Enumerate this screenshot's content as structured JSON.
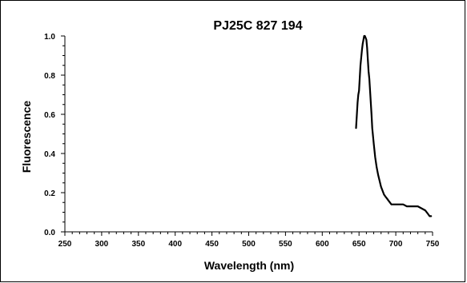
{
  "chart_data": {
    "type": "line",
    "title": "PJ25C 827 194",
    "xlabel": "Wavelength (nm)",
    "ylabel": "Fluorescence",
    "xlim": [
      250,
      750
    ],
    "ylim": [
      0.0,
      1.0
    ],
    "x_ticks": [
      "250",
      "300",
      "350",
      "400",
      "450",
      "500",
      "550",
      "600",
      "650",
      "700",
      "750"
    ],
    "y_ticks": [
      "0.0",
      "0.2",
      "0.4",
      "0.6",
      "0.8",
      "1.0"
    ],
    "grid": false,
    "legend": "none",
    "line_color": "#000000",
    "series": [
      {
        "x": [
          646,
          648,
          649,
          650,
          652,
          654,
          655,
          656,
          657,
          658,
          659,
          660,
          661,
          662,
          663,
          664,
          665,
          666,
          667,
          668,
          670,
          672,
          674,
          676,
          678,
          680,
          682,
          684,
          686,
          688,
          690,
          692,
          694,
          696,
          698,
          700,
          705,
          710,
          715,
          720,
          725,
          730,
          735,
          740,
          742,
          744,
          746,
          748
        ],
        "y": [
          0.53,
          0.66,
          0.7,
          0.72,
          0.85,
          0.93,
          0.96,
          0.98,
          1.0,
          1.0,
          0.99,
          0.98,
          0.94,
          0.88,
          0.82,
          0.78,
          0.72,
          0.66,
          0.6,
          0.53,
          0.45,
          0.38,
          0.33,
          0.29,
          0.26,
          0.23,
          0.21,
          0.19,
          0.18,
          0.17,
          0.16,
          0.15,
          0.14,
          0.14,
          0.14,
          0.14,
          0.14,
          0.14,
          0.13,
          0.13,
          0.13,
          0.13,
          0.12,
          0.11,
          0.1,
          0.09,
          0.08,
          0.08
        ]
      }
    ]
  }
}
